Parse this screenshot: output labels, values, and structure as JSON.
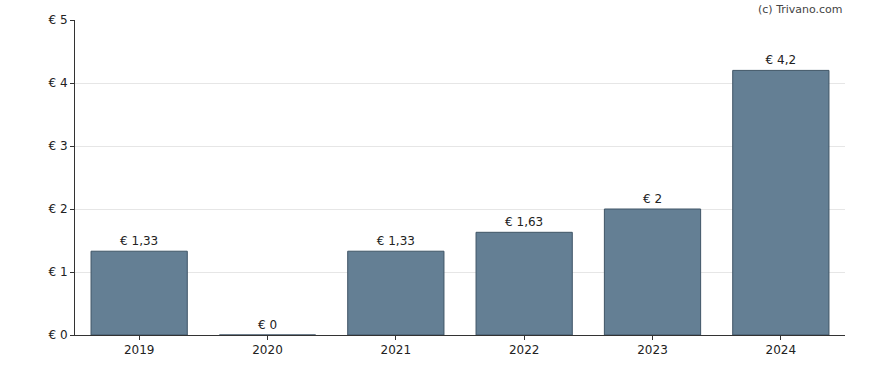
{
  "chart_data": {
    "type": "bar",
    "annotation": "(c) Trivano.com",
    "categories": [
      "2019",
      "2020",
      "2021",
      "2022",
      "2023",
      "2024"
    ],
    "values": [
      1.33,
      0,
      1.33,
      1.63,
      2,
      4.2
    ],
    "value_labels": [
      "€ 1,33",
      "€ 0",
      "€ 1,33",
      "€ 1,63",
      "€ 2",
      "€ 4,2"
    ],
    "data_labels": true,
    "color": "#647f94",
    "ylim": [
      0,
      5
    ],
    "yticks": [
      {
        "value": 0,
        "label": "€ 0"
      },
      {
        "value": 1,
        "label": "€ 1"
      },
      {
        "value": 2,
        "label": "€ 2"
      },
      {
        "value": 3,
        "label": "€ 3"
      },
      {
        "value": 4,
        "label": "€ 4"
      },
      {
        "value": 5,
        "label": "€ 5"
      }
    ],
    "grid": true
  }
}
